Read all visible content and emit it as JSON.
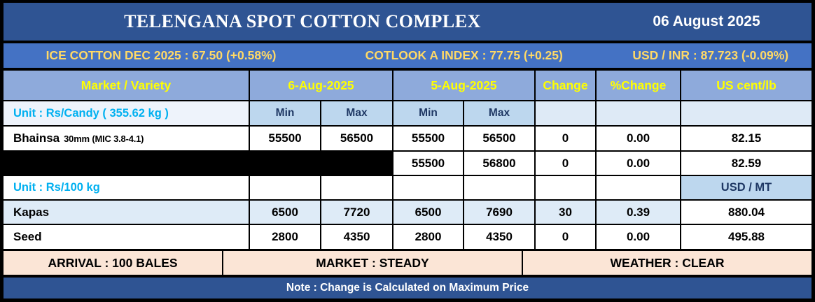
{
  "title": "TELENGANA SPOT COTTON COMPLEX",
  "date": "06 August 2025",
  "ticker": {
    "ice": "ICE COTTON DEC 2025 : 67.50 (+0.58%)",
    "cotlook": "COTLOOK A INDEX : 77.75 (+0.25)",
    "usdinr": "USD / INR : 87.723 (-0.09%)"
  },
  "table": {
    "columns": {
      "market": "Market / Variety",
      "d6": "6-Aug-2025",
      "d5": "5-Aug-2025",
      "change": "Change",
      "pctchange": "%Change",
      "cents": "US cent/lb"
    },
    "sub": {
      "min": "Min",
      "max": "Max",
      "usdmt": "USD / MT"
    },
    "units": {
      "candy": "Unit : Rs/Candy ( 355.62 kg )",
      "hundredkg": "Unit : Rs/100 kg"
    },
    "rows": {
      "bhainsa": {
        "name": "Bhainsa",
        "spec": "30mm (MIC 3.8-4.1)",
        "min6": "55500",
        "max6": "56500",
        "min5": "55500",
        "max5": "56500",
        "change": "0",
        "pct": "0.00",
        "cents": "82.15"
      },
      "redacted": {
        "min5": "55500",
        "max5": "56800",
        "change": "0",
        "pct": "0.00",
        "cents": "82.59"
      },
      "kapas": {
        "name": "Kapas",
        "min6": "6500",
        "max6": "7720",
        "min5": "6500",
        "max5": "7690",
        "change": "30",
        "pct": "0.39",
        "cents": "880.04"
      },
      "seed": {
        "name": "Seed",
        "min6": "2800",
        "max6": "4350",
        "min5": "2800",
        "max5": "4350",
        "change": "0",
        "pct": "0.00",
        "cents": "495.88"
      }
    }
  },
  "footer": {
    "arrival": "ARRIVAL : 100 BALES",
    "market": "MARKET : STEADY",
    "weather": "WEATHER : CLEAR"
  },
  "note": "Note : Change is Calculated on Maximum Price",
  "colors": {
    "dark_blue": "#2F5493",
    "bright_blue": "#4472C4",
    "header_blue": "#8EAADB",
    "subheader_blue": "#BDD7EE",
    "pale_blue": "#DEEAF6",
    "unit_row": "#EEF3FB",
    "row_tint": "#DEEBF7",
    "peach": "#FBE5D6",
    "yellow": "#FFFF00",
    "gold": "#FFD966",
    "cyan": "#00B0F0",
    "navy": "#1F3864",
    "redaction": "#000000"
  },
  "chart_data": {
    "type": "table",
    "title": "TELENGANA SPOT COTTON COMPLEX",
    "date": "06 August 2025",
    "indices": [
      {
        "name": "ICE COTTON DEC 2025",
        "value": 67.5,
        "change": "+0.58%"
      },
      {
        "name": "COTLOOK A INDEX",
        "value": 77.75,
        "change": "+0.25"
      },
      {
        "name": "USD / INR",
        "value": 87.723,
        "change": "-0.09%"
      }
    ],
    "columns": [
      "Market / Variety",
      "6-Aug-2025 Min",
      "6-Aug-2025 Max",
      "5-Aug-2025 Min",
      "5-Aug-2025 Max",
      "Change",
      "%Change",
      "US cent/lb"
    ],
    "unit_groups": [
      {
        "unit": "Unit : Rs/Candy ( 355.62 kg )",
        "alt_unit": "US cent/lb",
        "rows": [
          {
            "market": "Bhainsa 30mm (MIC 3.8-4.1)",
            "min_6aug": 55500,
            "max_6aug": 56500,
            "min_5aug": 55500,
            "max_5aug": 56500,
            "change": 0,
            "pct_change": 0.0,
            "us_cent_lb": 82.15,
            "redacted": false
          },
          {
            "market": null,
            "min_6aug": null,
            "max_6aug": null,
            "min_5aug": 55500,
            "max_5aug": 56800,
            "change": 0,
            "pct_change": 0.0,
            "us_cent_lb": 82.59,
            "redacted": true
          }
        ]
      },
      {
        "unit": "Unit : Rs/100 kg",
        "alt_unit": "USD / MT",
        "rows": [
          {
            "market": "Kapas",
            "min_6aug": 6500,
            "max_6aug": 7720,
            "min_5aug": 6500,
            "max_5aug": 7690,
            "change": 30,
            "pct_change": 0.39,
            "usd_mt": 880.04,
            "redacted": false
          },
          {
            "market": "Seed",
            "min_6aug": 2800,
            "max_6aug": 4350,
            "min_5aug": 2800,
            "max_5aug": 4350,
            "change": 0,
            "pct_change": 0.0,
            "usd_mt": 495.88,
            "redacted": false
          }
        ]
      }
    ],
    "status": {
      "arrival": "100 BALES",
      "market": "STEADY",
      "weather": "CLEAR"
    },
    "note": "Change is Calculated on Maximum Price"
  }
}
